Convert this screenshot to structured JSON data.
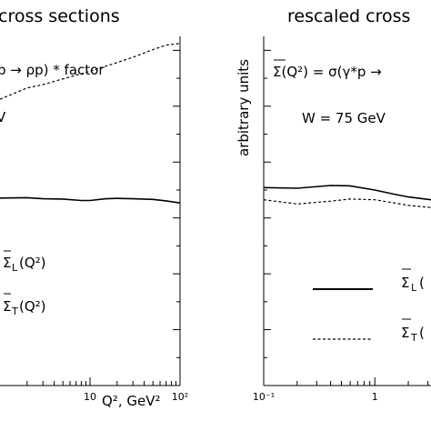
{
  "chart_data": [
    {
      "type": "line",
      "title": "cross sections",
      "annotations": [
        "p → ρp) * factor",
        "V"
      ],
      "xlabel": "Q², GeV²",
      "xscale": "log",
      "xlim": [
        1,
        100
      ],
      "xticks": [
        {
          "value": 10,
          "label": "10"
        },
        {
          "value": 100,
          "label": "10²"
        }
      ],
      "ylim": [
        0,
        1
      ],
      "series": [
        {
          "name": "Σ_L(Q²)",
          "style": "solid",
          "x": [
            1,
            2,
            3,
            5,
            8,
            10,
            15,
            20,
            30,
            50,
            70,
            100
          ],
          "y": [
            0.537,
            0.538,
            0.535,
            0.534,
            0.53,
            0.53,
            0.535,
            0.536,
            0.535,
            0.533,
            0.529,
            0.523
          ]
        },
        {
          "name": "Σ_T(Q²)",
          "style": "dashed",
          "x": [
            1,
            2,
            3,
            5,
            10,
            20,
            30,
            50,
            70,
            100
          ],
          "y": [
            0.82,
            0.852,
            0.862,
            0.878,
            0.9,
            0.925,
            0.94,
            0.962,
            0.975,
            0.98
          ]
        }
      ],
      "legend": [
        {
          "label": "Σ",
          "sub": "L",
          "tail": "(Q²)",
          "style": "solid"
        },
        {
          "label": "Σ",
          "sub": "T",
          "tail": "(Q²)",
          "style": "dashed"
        }
      ]
    },
    {
      "type": "line",
      "title": "rescaled cross",
      "ylabel": "arbitrary units",
      "annotations": [
        "Σ(Q²) = σ(γ*p →",
        "W = 75 GeV"
      ],
      "xscale": "log",
      "xlim": [
        0.1,
        3.2
      ],
      "xticks": [
        {
          "value": 0.1,
          "label": "10⁻¹"
        },
        {
          "value": 1,
          "label": "1"
        }
      ],
      "ylim": [
        0,
        1
      ],
      "series": [
        {
          "name": "Σ_L(Q²)",
          "style": "solid",
          "x": [
            0.1,
            0.2,
            0.4,
            0.6,
            1,
            1.5,
            2,
            3.2
          ],
          "y": [
            0.567,
            0.565,
            0.573,
            0.572,
            0.56,
            0.548,
            0.54,
            0.532
          ]
        },
        {
          "name": "Σ_T(Q²)",
          "style": "dashed",
          "x": [
            0.1,
            0.2,
            0.4,
            0.6,
            1,
            1.5,
            2,
            3.2
          ],
          "y": [
            0.532,
            0.52,
            0.528,
            0.534,
            0.532,
            0.523,
            0.516,
            0.51
          ]
        }
      ],
      "legend": [
        {
          "label": "Σ",
          "sub": "L",
          "tail": "(",
          "style": "solid"
        },
        {
          "label": "Σ",
          "sub": "T",
          "tail": "(",
          "style": "dashed"
        }
      ]
    }
  ]
}
